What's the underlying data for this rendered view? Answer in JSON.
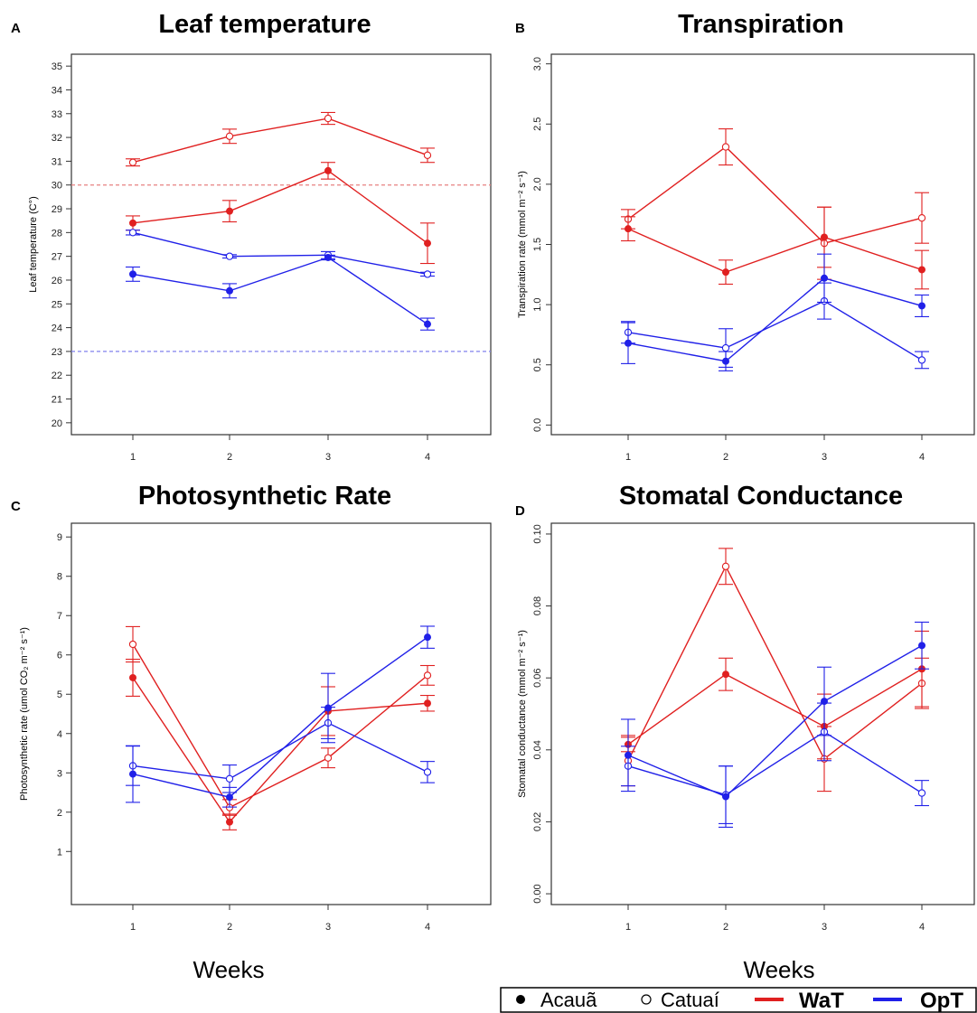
{
  "colors": {
    "WaT": "#e02020",
    "OpT": "#2020e8",
    "frame": "#333333",
    "threshold_WaT": "#e88080",
    "threshold_OpT": "#8080ee"
  },
  "x_title": "Weeks",
  "legend": {
    "acaua": "Acauã",
    "catuai": "Catuaí",
    "wat": "WaT",
    "opt": "OpT"
  },
  "chart_data": [
    {
      "panel": "A",
      "type": "line",
      "title": "Leaf temperature",
      "xlabel": "",
      "ylabel": "Leaf temperature (C°)",
      "x": [
        1,
        2,
        3,
        4
      ],
      "xticks": [
        "1",
        "2",
        "3",
        "4"
      ],
      "ylim": [
        19.5,
        35.5
      ],
      "yticks": [
        20,
        21,
        22,
        23,
        24,
        25,
        26,
        27,
        28,
        29,
        30,
        31,
        32,
        33,
        34,
        35
      ],
      "hlines": [
        {
          "y": 30,
          "group": "WaT"
        },
        {
          "y": 23,
          "group": "OpT"
        }
      ],
      "series": [
        {
          "group": "WaT",
          "cultivar": "Catuaí",
          "filled": false,
          "values": [
            30.95,
            32.05,
            32.8,
            31.25
          ],
          "err": [
            0.15,
            0.3,
            0.25,
            0.3
          ]
        },
        {
          "group": "WaT",
          "cultivar": "Acauã",
          "filled": true,
          "values": [
            28.4,
            28.9,
            30.6,
            27.55
          ],
          "err": [
            0.3,
            0.45,
            0.35,
            0.85
          ]
        },
        {
          "group": "OpT",
          "cultivar": "Catuaí",
          "filled": false,
          "values": [
            28.0,
            27.0,
            27.05,
            26.25
          ],
          "err": [
            0.1,
            0.07,
            0.15,
            0.08
          ]
        },
        {
          "group": "OpT",
          "cultivar": "Acauã",
          "filled": true,
          "values": [
            26.25,
            25.55,
            26.95,
            24.15
          ],
          "err": [
            0.3,
            0.3,
            0.1,
            0.25
          ]
        }
      ]
    },
    {
      "panel": "B",
      "type": "line",
      "title": "Transpiration",
      "xlabel": "",
      "ylabel": "Transpiration rate (mmol m⁻² s⁻¹)",
      "x": [
        1,
        2,
        3,
        4
      ],
      "xticks": [
        "1",
        "2",
        "3",
        "4"
      ],
      "ylim": [
        -0.08,
        3.08
      ],
      "yticks": [
        "0.0",
        "0.5",
        "1.0",
        "1.5",
        "2.0",
        "2.5",
        "3.0"
      ],
      "hlines": [],
      "series": [
        {
          "group": "WaT",
          "cultivar": "Catuaí",
          "filled": false,
          "values": [
            1.71,
            2.31,
            1.51,
            1.72
          ],
          "err": [
            0.08,
            0.15,
            0.3,
            0.21
          ]
        },
        {
          "group": "WaT",
          "cultivar": "Acauã",
          "filled": true,
          "values": [
            1.63,
            1.27,
            1.56,
            1.29
          ],
          "err": [
            0.1,
            0.1,
            0.25,
            0.16
          ]
        },
        {
          "group": "OpT",
          "cultivar": "Catuaí",
          "filled": false,
          "values": [
            0.77,
            0.64,
            1.03,
            0.54
          ],
          "err": [
            0.09,
            0.16,
            0.15,
            0.07
          ]
        },
        {
          "group": "OpT",
          "cultivar": "Acauã",
          "filled": true,
          "values": [
            0.68,
            0.53,
            1.22,
            0.99
          ],
          "err": [
            0.17,
            0.08,
            0.2,
            0.09
          ]
        }
      ]
    },
    {
      "panel": "C",
      "type": "line",
      "title": "Photosynthetic Rate",
      "xlabel": "Weeks",
      "ylabel": "Photosynthetic rate (umol CO₂ m⁻² s⁻¹)",
      "x": [
        1,
        2,
        3,
        4
      ],
      "xticks": [
        "1",
        "2",
        "3",
        "4"
      ],
      "ylim": [
        -0.35,
        9.35
      ],
      "yticks": [
        1,
        2,
        3,
        4,
        5,
        6,
        7,
        8,
        9
      ],
      "hlines": [],
      "series": [
        {
          "group": "WaT",
          "cultivar": "Catuaí",
          "filled": false,
          "values": [
            6.27,
            2.12,
            3.38,
            5.48
          ],
          "err": [
            0.45,
            0.2,
            0.25,
            0.25
          ]
        },
        {
          "group": "WaT",
          "cultivar": "Acauã",
          "filled": true,
          "values": [
            5.42,
            1.75,
            4.57,
            4.77
          ],
          "err": [
            0.47,
            0.2,
            0.62,
            0.2
          ]
        },
        {
          "group": "OpT",
          "cultivar": "Catuaí",
          "filled": false,
          "values": [
            3.18,
            2.85,
            4.27,
            3.02
          ],
          "err": [
            0.5,
            0.35,
            0.4,
            0.27
          ]
        },
        {
          "group": "OpT",
          "cultivar": "Acauã",
          "filled": true,
          "values": [
            2.97,
            2.38,
            4.65,
            6.45
          ],
          "err": [
            0.72,
            0.25,
            0.88,
            0.28
          ]
        }
      ]
    },
    {
      "panel": "D",
      "type": "line",
      "title": "Stomatal Conductance",
      "xlabel": "Weeks",
      "ylabel": "Stomatal conductance (mmol m⁻² s⁻¹)",
      "x": [
        1,
        2,
        3,
        4
      ],
      "xticks": [
        "1",
        "2",
        "3",
        "4"
      ],
      "ylim": [
        -0.003,
        0.103
      ],
      "yticks": [
        "0.00",
        "0.02",
        "0.04",
        "0.06",
        "0.08",
        "0.10"
      ],
      "hlines": [],
      "series": [
        {
          "group": "WaT",
          "cultivar": "Catuaí",
          "filled": false,
          "values": [
            0.037,
            0.091,
            0.0375,
            0.0585
          ],
          "err": [
            0.007,
            0.005,
            0.009,
            0.007
          ]
        },
        {
          "group": "WaT",
          "cultivar": "Acauã",
          "filled": true,
          "values": [
            0.0415,
            0.061,
            0.0465,
            0.0625
          ],
          "err": [
            0.002,
            0.0045,
            0.009,
            0.0105
          ]
        },
        {
          "group": "OpT",
          "cultivar": "Catuaí",
          "filled": false,
          "values": [
            0.0355,
            0.0275,
            0.045,
            0.028
          ],
          "err": [
            0.0055,
            0.008,
            0.008,
            0.0035
          ]
        },
        {
          "group": "OpT",
          "cultivar": "Acauã",
          "filled": true,
          "values": [
            0.0385,
            0.027,
            0.0535,
            0.069
          ],
          "err": [
            0.01,
            0.0085,
            0.0095,
            0.0065
          ]
        }
      ]
    }
  ]
}
